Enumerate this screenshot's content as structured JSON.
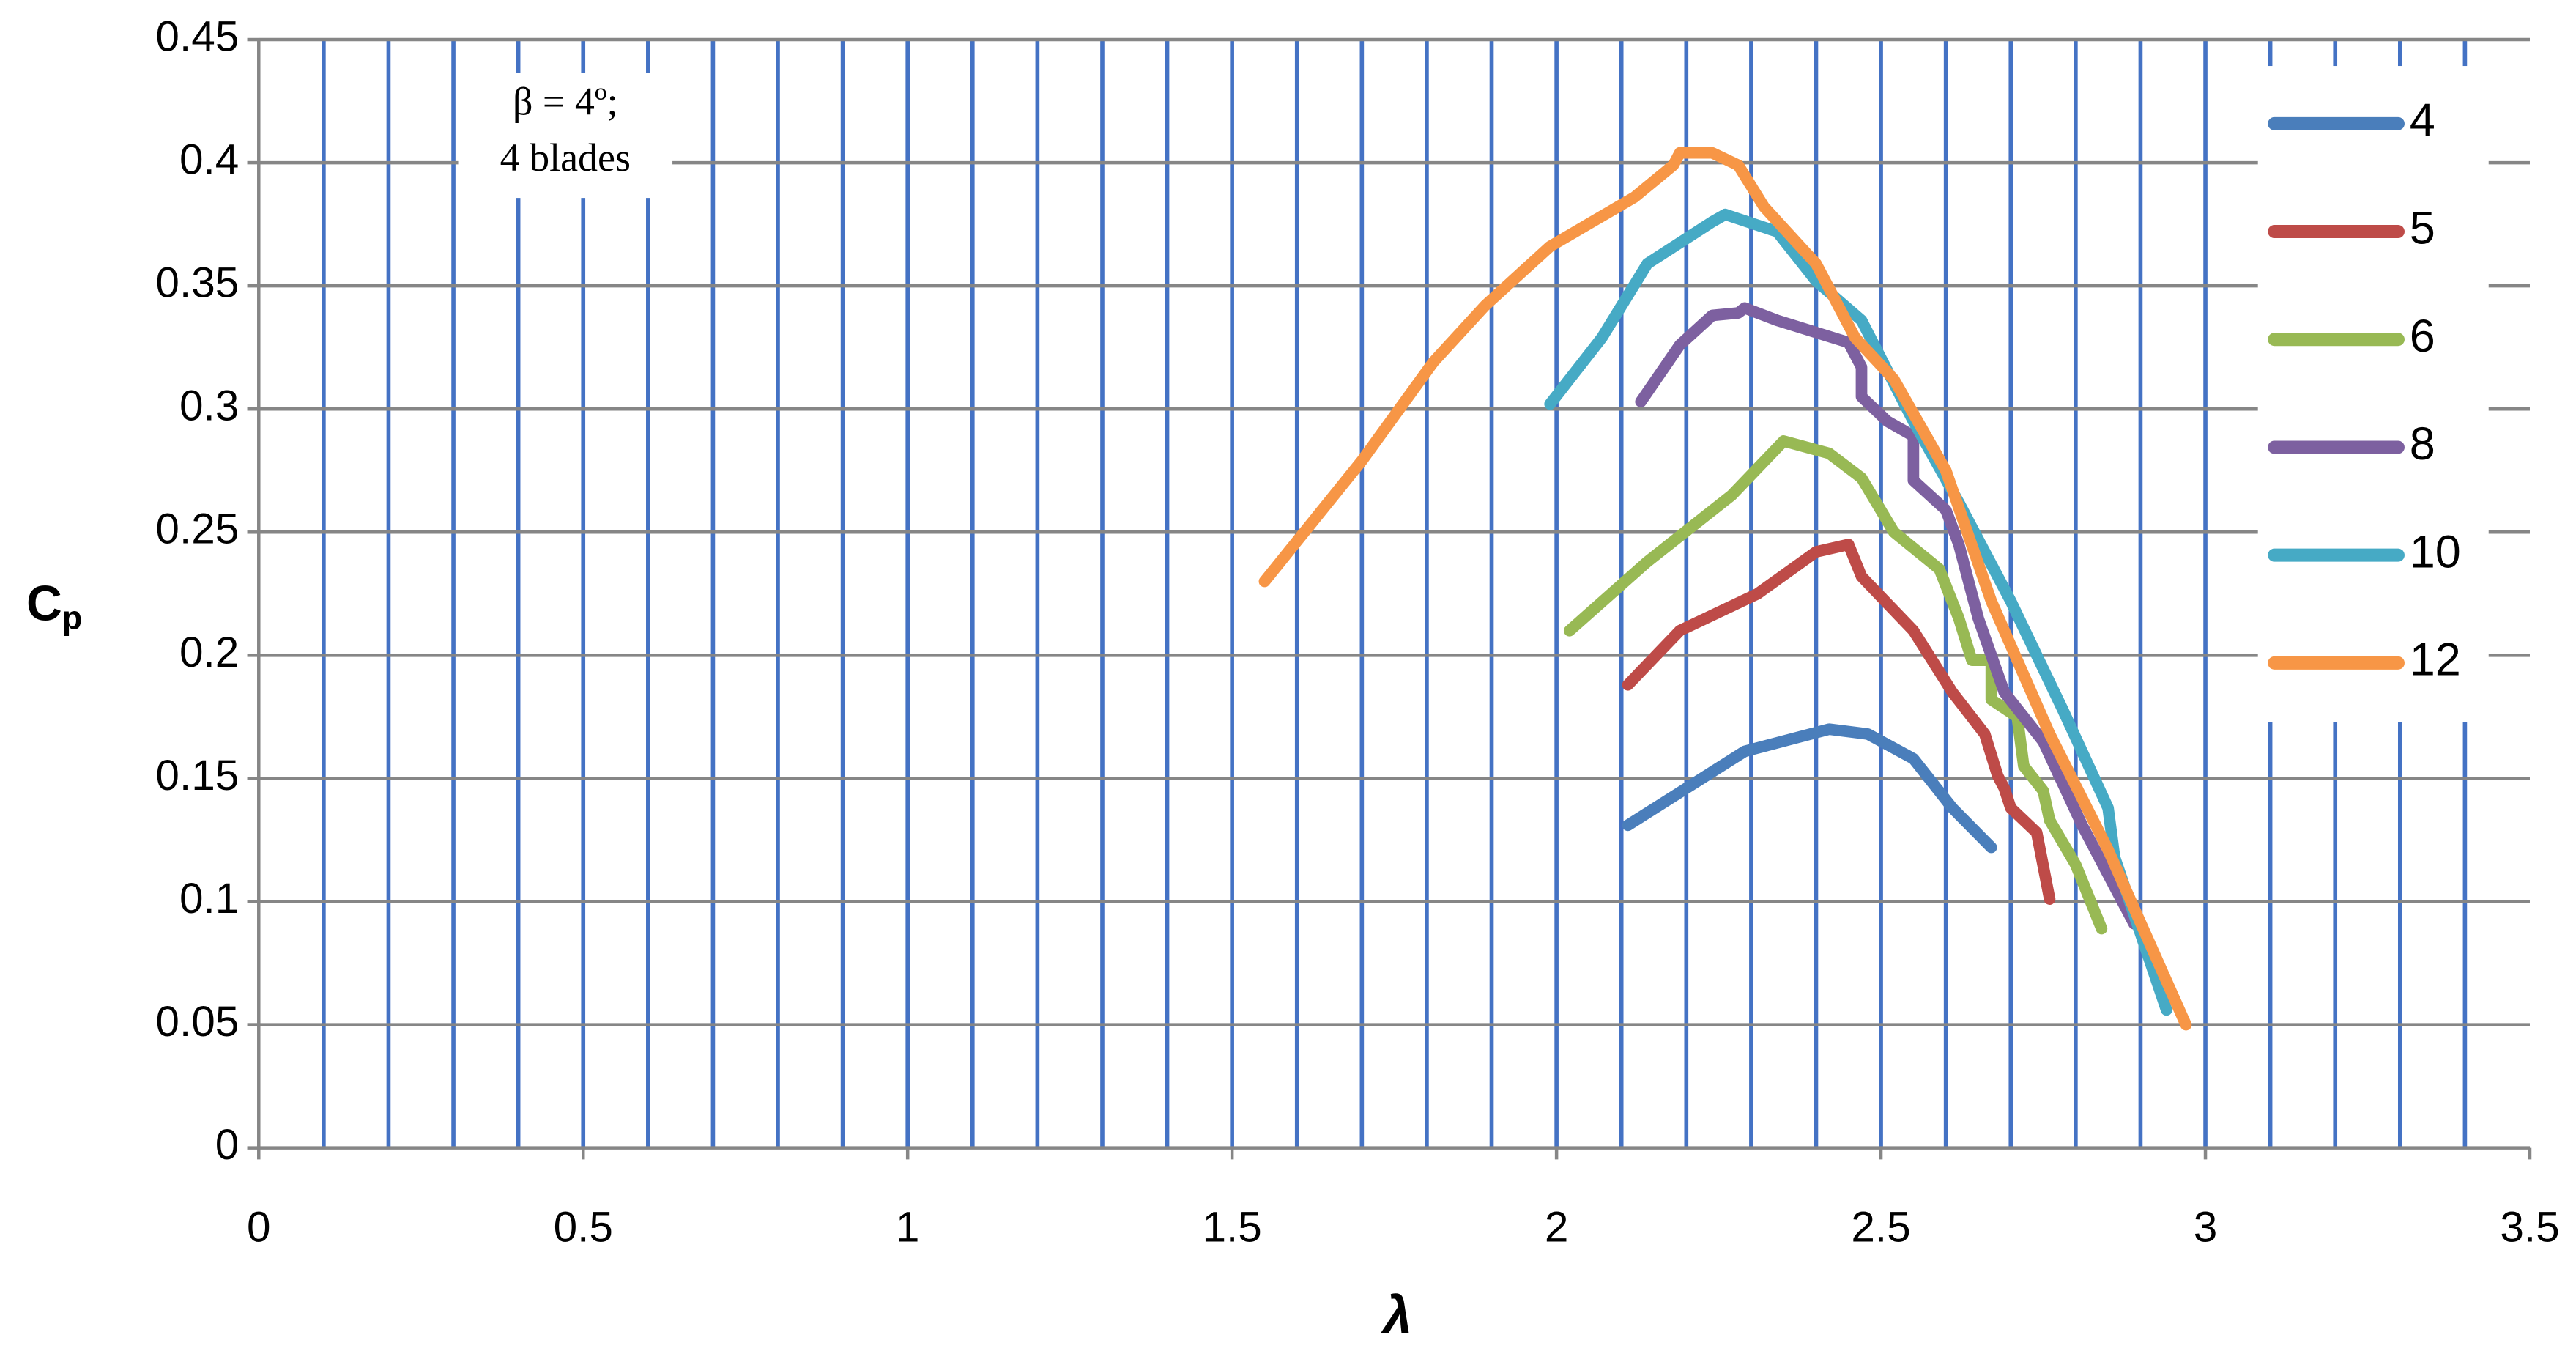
{
  "chart_data": {
    "type": "line",
    "xlabel": "λ",
    "ylabel": "C",
    "ylabel_sub": "p",
    "annotation": [
      "β = 4º;",
      "4 blades"
    ],
    "xlim": [
      0,
      3.5
    ],
    "ylim": [
      0,
      0.45
    ],
    "xticks": [
      0,
      0.5,
      1,
      1.5,
      2,
      2.5,
      3,
      3.5
    ],
    "yticks": [
      0,
      0.05,
      0.1,
      0.15,
      0.2,
      0.25,
      0.3,
      0.35,
      0.4,
      0.45
    ],
    "x_gridlines": [
      0.1,
      0.2,
      0.3,
      0.4,
      0.5,
      0.6,
      0.7,
      0.8,
      0.9,
      1,
      1.1,
      1.2,
      1.3,
      1.4,
      1.5,
      1.6,
      1.7,
      1.8,
      1.9,
      2,
      2.1,
      2.2,
      2.3,
      2.4,
      2.5,
      2.6,
      2.7,
      2.8,
      2.9,
      3,
      3.1,
      3.2,
      3.3,
      3.4
    ],
    "x_grid_color": "#4472c4",
    "y_grid_color": "#868686",
    "grid": true,
    "legend": "right",
    "series": [
      {
        "name": "4",
        "color": "#4a7ebb",
        "x": [
          2.11,
          2.29,
          2.42,
          2.48,
          2.55,
          2.61,
          2.67
        ],
        "values": [
          0.131,
          0.161,
          0.17,
          0.168,
          0.158,
          0.138,
          0.122
        ]
      },
      {
        "name": "5",
        "color": "#be4b48",
        "x": [
          2.11,
          2.19,
          2.31,
          2.4,
          2.45,
          2.47,
          2.55,
          2.61,
          2.66,
          2.68,
          2.69,
          2.7,
          2.74,
          2.76
        ],
        "values": [
          0.188,
          0.21,
          0.225,
          0.242,
          0.245,
          0.232,
          0.21,
          0.185,
          0.168,
          0.151,
          0.146,
          0.138,
          0.128,
          0.101
        ]
      },
      {
        "name": "6",
        "color": "#98b954",
        "x": [
          2.02,
          2.14,
          2.27,
          2.35,
          2.42,
          2.47,
          2.52,
          2.59,
          2.62,
          2.64,
          2.67,
          2.67,
          2.71,
          2.72,
          2.75,
          2.76,
          2.8,
          2.84
        ],
        "values": [
          0.21,
          0.238,
          0.265,
          0.287,
          0.282,
          0.272,
          0.25,
          0.235,
          0.215,
          0.198,
          0.198,
          0.182,
          0.175,
          0.155,
          0.145,
          0.133,
          0.115,
          0.089
        ]
      },
      {
        "name": "8",
        "color": "#7d60a0",
        "x": [
          2.13,
          2.19,
          2.24,
          2.28,
          2.29,
          2.34,
          2.45,
          2.47,
          2.47,
          2.51,
          2.55,
          2.55,
          2.6,
          2.62,
          2.65,
          2.69,
          2.75,
          2.81,
          2.89
        ],
        "values": [
          0.303,
          0.326,
          0.338,
          0.339,
          0.341,
          0.336,
          0.327,
          0.317,
          0.305,
          0.295,
          0.289,
          0.271,
          0.259,
          0.245,
          0.215,
          0.185,
          0.165,
          0.131,
          0.091
        ]
      },
      {
        "name": "10",
        "color": "#46aac5",
        "x": [
          1.99,
          2.07,
          2.14,
          2.24,
          2.26,
          2.34,
          2.4,
          2.47,
          2.55,
          2.62,
          2.7,
          2.78,
          2.85,
          2.86,
          2.94
        ],
        "values": [
          0.302,
          0.329,
          0.359,
          0.376,
          0.379,
          0.372,
          0.352,
          0.336,
          0.295,
          0.262,
          0.222,
          0.178,
          0.138,
          0.118,
          0.056
        ]
      },
      {
        "name": "12",
        "color": "#f79646",
        "x": [
          1.55,
          1.7,
          1.81,
          1.89,
          1.99,
          2.12,
          2.18,
          2.19,
          2.24,
          2.28,
          2.32,
          2.4,
          2.46,
          2.52,
          2.6,
          2.67,
          2.76,
          2.85,
          2.97
        ],
        "values": [
          0.23,
          0.279,
          0.319,
          0.342,
          0.366,
          0.386,
          0.399,
          0.404,
          0.404,
          0.399,
          0.382,
          0.359,
          0.329,
          0.312,
          0.275,
          0.222,
          0.168,
          0.121,
          0.05
        ]
      }
    ]
  }
}
